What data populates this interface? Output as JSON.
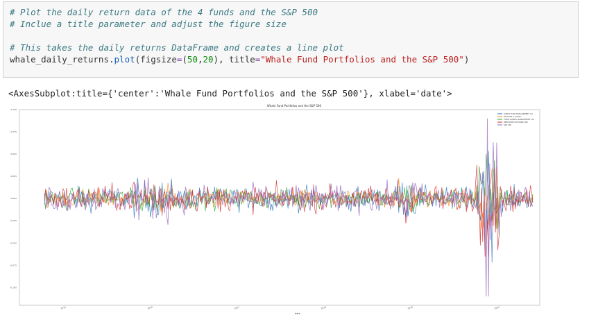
{
  "code_cell": {
    "line1": "# Plot the daily return data of the 4 funds and the S&P 500",
    "line2": "# Inclue a title parameter and adjust the figure size",
    "line3": "",
    "line4": "# This takes the daily returns DataFrame and creates a line plot",
    "line5_var": "whale_daily_returns",
    "line5_dot": ".",
    "line5_fn": "plot",
    "line5_open": "(figsize",
    "line5_eq": "=",
    "line5_paren": "(",
    "line5_n1": "50",
    "line5_comma": ",",
    "line5_n2": "20",
    "line5_mid": "), title",
    "line5_eq2": "=",
    "line5_str": "\"Whale Fund Portfolios and the S&P 500\"",
    "line5_close": ")"
  },
  "output_text": "<AxesSubplot:title={'center':'Whale Fund Portfolios and the S&P 500'}, xlabel='date'>",
  "chart_data": {
    "type": "line",
    "title": "Whale Fund Portfolios and the S&P 500",
    "xlabel": "date",
    "ylabel": "",
    "x_ticks": [
      "2015",
      "2016",
      "2017",
      "2018",
      "2019",
      "2020"
    ],
    "y_ticks": [
      "0.100",
      "0.075",
      "0.050",
      "0.025",
      "0.000",
      "-0.025",
      "-0.050",
      "-0.075",
      "-0.100"
    ],
    "ylim": [
      -0.12,
      0.1
    ],
    "legend_position": "top-right",
    "grid": false,
    "series": [
      {
        "name": "SOROS FUND MANAGEMENT LLC",
        "color": "#1f77b4",
        "scale": 0.01
      },
      {
        "name": "PAULSON & CO.INC.",
        "color": "#ff7f0e",
        "scale": 0.008
      },
      {
        "name": "TIGER GLOBAL MANAGEMENT LLC",
        "color": "#2ca02c",
        "scale": 0.009
      },
      {
        "name": "BERKSHIRE HATHAWAY INC",
        "color": "#d62728",
        "scale": 0.011
      },
      {
        "name": "S&P 500",
        "color": "#9467bd",
        "scale": 0.012
      }
    ]
  }
}
